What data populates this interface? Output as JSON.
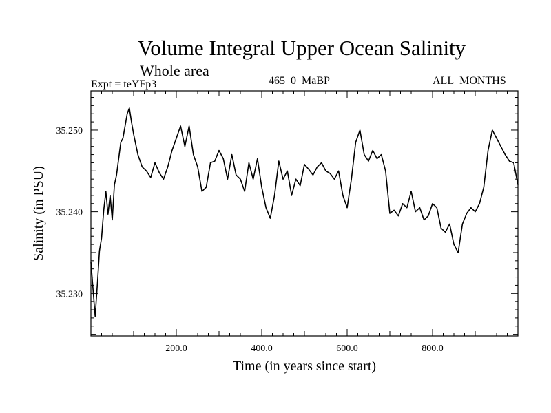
{
  "chart_data": {
    "type": "line",
    "title": "Volume Integral Upper Ocean Salinity",
    "subtitle": "Whole area",
    "experiment_label": "Expt = teYFp3",
    "run_label": "465_0_MaBP",
    "months_label": "ALL_MONTHS",
    "xlabel": "Time (in years since start)",
    "ylabel": "Salinity (in PSU)",
    "xlim": [
      0,
      1000
    ],
    "ylim": [
      35.2248,
      35.2548
    ],
    "x_ticks": [
      200,
      400,
      600,
      800
    ],
    "x_tick_labels": [
      "200.0",
      "400.0",
      "600.0",
      "800.0"
    ],
    "y_ticks": [
      35.23,
      35.24,
      35.25
    ],
    "y_tick_labels": [
      "35.230",
      "35.240",
      "35.250"
    ],
    "grid": false,
    "series": [
      {
        "name": "Volume integral upper ocean salinity",
        "color": "#000000",
        "x": [
          0,
          5,
          10,
          16,
          20,
          25,
          30,
          35,
          40,
          45,
          50,
          55,
          60,
          65,
          70,
          75,
          80,
          85,
          90,
          95,
          100,
          110,
          120,
          130,
          140,
          150,
          160,
          170,
          180,
          190,
          200,
          210,
          220,
          230,
          240,
          250,
          260,
          270,
          280,
          290,
          300,
          310,
          320,
          330,
          340,
          350,
          360,
          370,
          380,
          390,
          400,
          410,
          420,
          430,
          440,
          450,
          460,
          470,
          480,
          490,
          500,
          510,
          520,
          530,
          540,
          550,
          560,
          570,
          580,
          590,
          600,
          610,
          620,
          630,
          640,
          650,
          660,
          670,
          680,
          690,
          700,
          710,
          720,
          730,
          740,
          750,
          760,
          770,
          780,
          790,
          800,
          810,
          820,
          830,
          840,
          850,
          860,
          870,
          880,
          890,
          900,
          910,
          920,
          930,
          940,
          950,
          960,
          970,
          980,
          990,
          1000
        ],
        "values": [
          35.2339,
          35.2305,
          35.2272,
          35.2318,
          35.2352,
          35.2368,
          35.2402,
          35.2425,
          35.2397,
          35.242,
          35.239,
          35.2433,
          35.2445,
          35.2465,
          35.2485,
          35.249,
          35.2505,
          35.252,
          35.2527,
          35.251,
          35.2495,
          35.247,
          35.2455,
          35.245,
          35.2442,
          35.246,
          35.2448,
          35.244,
          35.2455,
          35.2475,
          35.249,
          35.2505,
          35.248,
          35.2505,
          35.247,
          35.2455,
          35.2425,
          35.243,
          35.246,
          35.2462,
          35.2475,
          35.2465,
          35.244,
          35.247,
          35.2445,
          35.244,
          35.2425,
          35.246,
          35.244,
          35.2465,
          35.243,
          35.2405,
          35.2392,
          35.242,
          35.2462,
          35.244,
          35.245,
          35.242,
          35.244,
          35.2432,
          35.2458,
          35.2452,
          35.2445,
          35.2455,
          35.246,
          35.245,
          35.2447,
          35.244,
          35.245,
          35.242,
          35.2405,
          35.244,
          35.2485,
          35.25,
          35.247,
          35.2462,
          35.2475,
          35.2465,
          35.247,
          35.245,
          35.2398,
          35.2402,
          35.2395,
          35.241,
          35.2405,
          35.2425,
          35.24,
          35.2405,
          35.239,
          35.2395,
          35.241,
          35.2405,
          35.238,
          35.2375,
          35.2385,
          35.236,
          35.235,
          35.2385,
          35.2398,
          35.2405,
          35.24,
          35.241,
          35.243,
          35.2475,
          35.25,
          35.249,
          35.248,
          35.247,
          35.2462,
          35.246,
          35.2433
        ]
      }
    ]
  }
}
